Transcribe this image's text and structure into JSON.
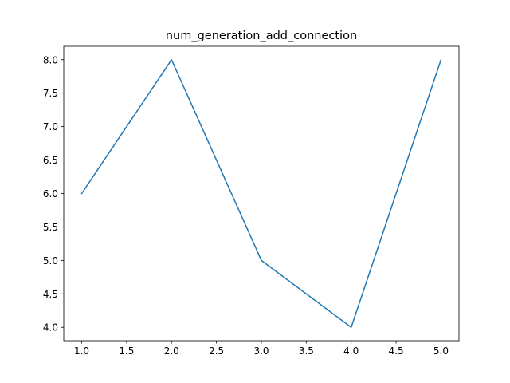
{
  "chart_data": {
    "type": "line",
    "title": "num_generation_add_connection",
    "xlabel": "",
    "ylabel": "",
    "x": [
      1.0,
      2.0,
      3.0,
      4.0,
      5.0
    ],
    "series": [
      {
        "values": [
          6,
          8,
          5,
          4,
          8
        ],
        "color": "#1f77b4"
      }
    ],
    "xlim": [
      0.8,
      5.2
    ],
    "ylim": [
      3.8,
      8.2
    ],
    "x_ticks": [
      "1.0",
      "1.5",
      "2.0",
      "2.5",
      "3.0",
      "3.5",
      "4.0",
      "4.5",
      "5.0"
    ],
    "y_ticks": [
      "4.0",
      "4.5",
      "5.0",
      "5.5",
      "6.0",
      "6.5",
      "7.0",
      "7.5",
      "8.0"
    ],
    "grid": false,
    "legend": "none"
  }
}
